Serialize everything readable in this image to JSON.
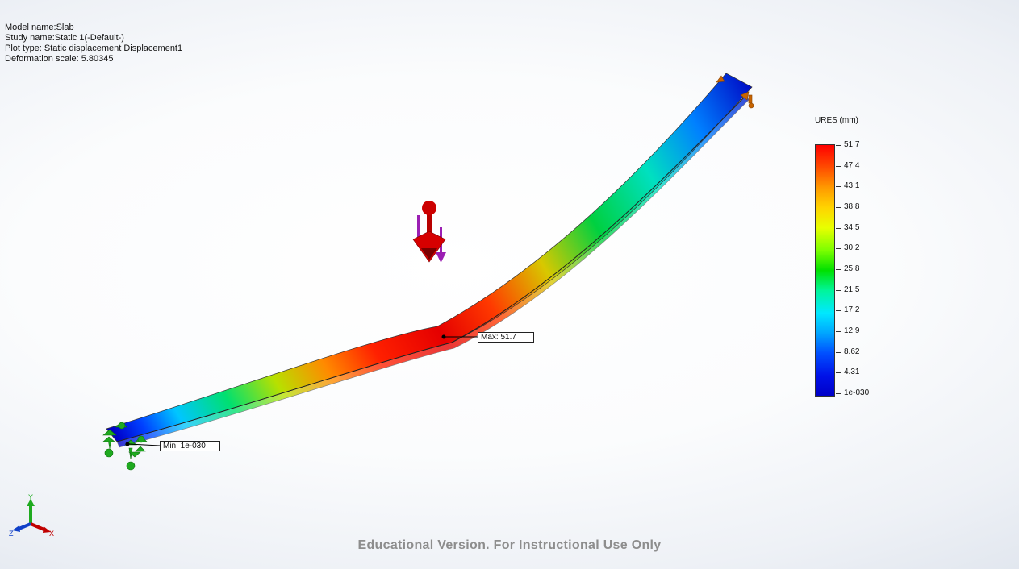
{
  "header": {
    "model_name": "Model name:Slab",
    "study_name": "Study name:Static 1(-Default-)",
    "plot_type": "Plot type: Static displacement Displacement1",
    "deformation_scale": "Deformation scale: 5.80345"
  },
  "legend": {
    "title": "URES (mm)",
    "labels": [
      "51.7",
      "47.4",
      "43.1",
      "38.8",
      "34.5",
      "30.2",
      "25.8",
      "21.5",
      "17.2",
      "12.9",
      "8.62",
      "4.31",
      "1e-030"
    ]
  },
  "callouts": {
    "max": "Max: 51.7",
    "min": "Min: 1e-030"
  },
  "triad": {
    "x": "X",
    "y": "Y",
    "z": "Z"
  },
  "watermark": "Educational Version. For Instructional Use Only",
  "icons": [
    "load-arrow-icon",
    "fixture-icon",
    "roller-support-icon",
    "coordinate-triad-icon"
  ],
  "colors": {
    "max": "#ff0000",
    "min": "#0000c8",
    "fixture": "#1faa1f",
    "load": "#c00000",
    "roller": "#c86400"
  }
}
